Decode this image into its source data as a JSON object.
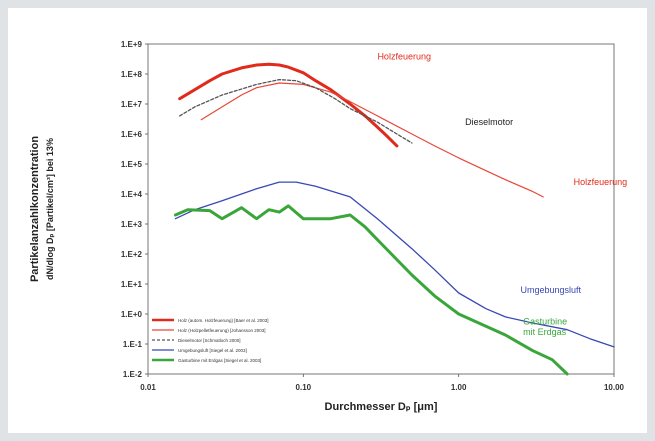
{
  "chart_data": {
    "type": "line",
    "xlabel": "Durchmesser Dₚ [μm]",
    "ylabel_line1": "Partikelanzahlkonzentration",
    "ylabel_line2": "dN/dlog Dₚ [Partikel/cm³] bei 13%",
    "xscale": "log",
    "yscale": "log",
    "xlim": [
      0.01,
      10.0
    ],
    "ylim": [
      0.01,
      1000000000
    ],
    "x_ticks": [
      "0.01",
      "0.10",
      "1.00",
      "10.00"
    ],
    "y_ticks": [
      "1.E-2",
      "1.E-1",
      "1.E+0",
      "1.E+1",
      "1.E+2",
      "1.E+3",
      "1.E+4",
      "1.E+5",
      "1.E+6",
      "1.E+7",
      "1.E+8",
      "1.E+9"
    ],
    "legend_position": "bottom-left",
    "series": [
      {
        "name": "Holz (autom. Holzfeuerung) [Baer et al. 2003]",
        "color": "#e02a1c",
        "width": 3,
        "x": [
          0.016,
          0.02,
          0.025,
          0.03,
          0.04,
          0.05,
          0.06,
          0.07,
          0.08,
          0.1,
          0.12,
          0.15,
          0.2,
          0.25,
          0.3,
          0.35,
          0.4
        ],
        "y": [
          15000000.0,
          30000000.0,
          60000000.0,
          100000000.0,
          160000000.0,
          200000000.0,
          210000000.0,
          200000000.0,
          170000000.0,
          110000000.0,
          60000000.0,
          30000000.0,
          10000000.0,
          4000000.0,
          1700000.0,
          800000.0,
          400000.0
        ]
      },
      {
        "name": "Holz (Holzpelletfeuerung) [Johansson 2003]",
        "color": "#e8473a",
        "width": 1.2,
        "x": [
          0.022,
          0.03,
          0.04,
          0.05,
          0.07,
          0.1,
          0.15,
          0.2,
          0.3,
          0.5,
          0.7,
          1.0,
          1.5,
          2.0,
          3.0,
          3.5
        ],
        "y": [
          3000000.0,
          8000000.0,
          20000000.0,
          35000000.0,
          50000000.0,
          45000000.0,
          25000000.0,
          12000000.0,
          4000000.0,
          1000000.0,
          400000.0,
          160000.0,
          60000.0,
          30000.0,
          12000.0,
          8000.0
        ]
      },
      {
        "name": "Dieselmotor [Schmatloch 2000]",
        "color": "#555555",
        "width": 1.3,
        "dash": true,
        "x": [
          0.016,
          0.02,
          0.03,
          0.05,
          0.07,
          0.09,
          0.12,
          0.16,
          0.2,
          0.3,
          0.4,
          0.5
        ],
        "y": [
          4000000.0,
          8000000.0,
          20000000.0,
          45000000.0,
          65000000.0,
          60000000.0,
          35000000.0,
          15000000.0,
          7000000.0,
          2500000.0,
          1000000.0,
          500000.0
        ]
      },
      {
        "name": "Umgebungsluft [Siegel et al. 2003]",
        "color": "#3848b4",
        "width": 1.3,
        "x": [
          0.015,
          0.02,
          0.03,
          0.05,
          0.07,
          0.09,
          0.12,
          0.2,
          0.3,
          0.5,
          0.7,
          1.0,
          1.5,
          2.0,
          3.0,
          5.0,
          7.0,
          10.0
        ],
        "y": [
          1500.0,
          3000.0,
          6000.0,
          15000.0,
          25000.0,
          25000.0,
          18000.0,
          8000.0,
          1500.0,
          150.0,
          30.0,
          5,
          1.5,
          0.8,
          0.5,
          0.3,
          0.15,
          0.08
        ]
      },
      {
        "name": "Gasturbine mit Erdgas [Siegel et al. 2003]",
        "color": "#3aa63a",
        "width": 3,
        "x": [
          0.015,
          0.018,
          0.025,
          0.03,
          0.04,
          0.05,
          0.06,
          0.07,
          0.08,
          0.1,
          0.15,
          0.2,
          0.25,
          0.3,
          0.5,
          0.7,
          1.0,
          2.0,
          3.0,
          4.0,
          5.0
        ],
        "y": [
          2000.0,
          3000.0,
          2800.0,
          1500.0,
          3500.0,
          1500.0,
          3000.0,
          2500.0,
          4000.0,
          1500.0,
          1500.0,
          2000.0,
          800.0,
          300.0,
          20.0,
          4,
          1,
          0.2,
          0.06,
          0.03,
          0.01
        ]
      }
    ],
    "annotations": [
      {
        "text": "Holzfeuerung",
        "color": "#e02a1c",
        "x": 0.3,
        "y": 300000000.0
      },
      {
        "text": "Dieselmotor",
        "color": "#222222",
        "x": 1.1,
        "y": 2000000.0
      },
      {
        "text": "Holzfeuerung",
        "color": "#e02a1c",
        "x": 5.5,
        "y": 20000.0
      },
      {
        "text": "Umgebungsluft",
        "color": "#3848b4",
        "x": 2.5,
        "y": 5
      },
      {
        "text": "Gasturbine",
        "color": "#3aa63a",
        "x": 2.6,
        "y": 0.45
      },
      {
        "text": "mit Erdgas",
        "color": "#3aa63a",
        "x": 2.6,
        "y": 0.2
      }
    ]
  }
}
